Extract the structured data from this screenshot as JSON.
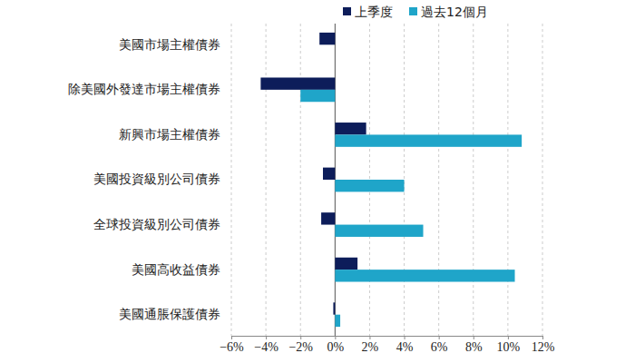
{
  "chart_data": {
    "type": "bar",
    "orientation": "horizontal",
    "grid": true,
    "legend": "top",
    "categories": [
      "美國市場主權債券",
      "除美國外發達市場主權債券",
      "新興市場主權債券",
      "美國投資級別公司債券",
      "全球投資級別公司債券",
      "美國高收益債券",
      "美國通脹保護債券"
    ],
    "series": [
      {
        "name": "上季度",
        "color": "#0d1d5a",
        "values": [
          -0.9,
          -4.3,
          1.8,
          -0.7,
          -0.8,
          1.3,
          -0.1
        ]
      },
      {
        "name": "過去12個月",
        "color": "#1fa5c9",
        "values": [
          0,
          -2.0,
          10.8,
          4.0,
          5.1,
          10.4,
          0.3
        ]
      }
    ],
    "xlim": [
      -6,
      12
    ],
    "xticks": [
      {
        "value": -6,
        "label": "−6%"
      },
      {
        "value": -4,
        "label": "−4%"
      },
      {
        "value": -2,
        "label": "−2%"
      },
      {
        "value": 0,
        "label": "0%"
      },
      {
        "value": 2,
        "label": "2%"
      },
      {
        "value": 4,
        "label": "4%"
      },
      {
        "value": 6,
        "label": "6%"
      },
      {
        "value": 8,
        "label": "8%"
      },
      {
        "value": 10,
        "label": "10%"
      },
      {
        "value": 12,
        "label": "12%"
      }
    ]
  }
}
